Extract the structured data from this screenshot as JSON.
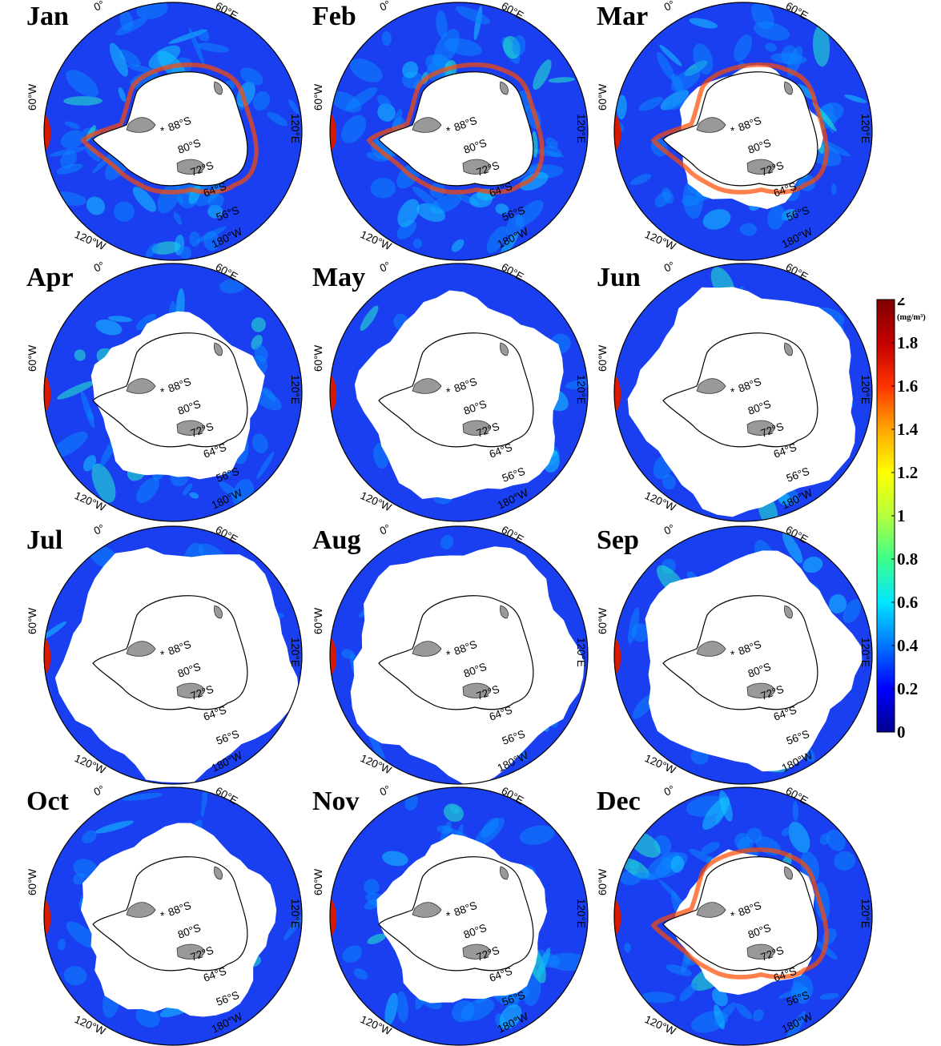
{
  "panels": [
    {
      "month": "Jan",
      "ice_fraction": 0.0
    },
    {
      "month": "Feb",
      "ice_fraction": 0.0
    },
    {
      "month": "Mar",
      "ice_fraction": 0.05
    },
    {
      "month": "Apr",
      "ice_fraction": 0.3
    },
    {
      "month": "May",
      "ice_fraction": 0.65
    },
    {
      "month": "Jun",
      "ice_fraction": 0.85
    },
    {
      "month": "Jul",
      "ice_fraction": 0.95
    },
    {
      "month": "Aug",
      "ice_fraction": 0.92
    },
    {
      "month": "Sep",
      "ice_fraction": 0.75
    },
    {
      "month": "Oct",
      "ice_fraction": 0.55
    },
    {
      "month": "Nov",
      "ice_fraction": 0.3
    },
    {
      "month": "Dec",
      "ice_fraction": 0.05
    }
  ],
  "map_labels": {
    "lon_0": "0°",
    "lon_60e": "60°E",
    "lon_120e": "120°E",
    "lon_180w": "180°W",
    "lon_120w": "120°W",
    "lon_60w": "60°W",
    "lat_88": "88°S",
    "lat_80": "80°S",
    "lat_72": "72°S",
    "lat_64": "64°S",
    "lat_56": "56°S",
    "pole_marker": "*"
  },
  "colorbar": {
    "min": 0,
    "max": 2,
    "ticks": [
      "0",
      "0.2",
      "0.4",
      "0.6",
      "0.8",
      "1",
      "1.2",
      "1.4",
      "1.6",
      "1.8",
      "2"
    ],
    "unit": "(mg/m³)",
    "colors": [
      "#00008f",
      "#0000ff",
      "#0073ff",
      "#00e6ff",
      "#3dff8a",
      "#b4ff3c",
      "#ffff00",
      "#ffa600",
      "#ff3300",
      "#c40000",
      "#7f0000"
    ]
  },
  "colors": {
    "ocean": "#1a3ff0",
    "ice": "#ffffff",
    "land": "#999999",
    "coast": "#000000"
  }
}
